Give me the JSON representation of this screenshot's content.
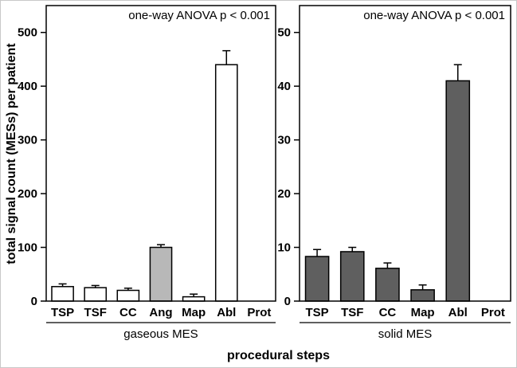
{
  "figure": {
    "ylabel": "total signal count (MESs) per patient",
    "xlabel": "procedural steps"
  },
  "chart_data": [
    {
      "type": "bar",
      "panel_label": "gaseous MES",
      "annotation": "one-way ANOVA p < 0.001",
      "categories": [
        "TSP",
        "TSF",
        "CC",
        "Ang",
        "Map",
        "Abl",
        "Prot"
      ],
      "values": [
        27,
        25,
        20,
        100,
        8,
        440,
        0
      ],
      "errors": [
        5,
        4,
        4,
        5,
        5,
        26,
        0
      ],
      "bar_fills": [
        "#ffffff",
        "#ffffff",
        "#ffffff",
        "#b8b8b8",
        "#ffffff",
        "#ffffff",
        "#ffffff"
      ],
      "bar_stroke": "#000000",
      "error_color": "#000000",
      "ylim": [
        0,
        550
      ],
      "yticks": [
        0,
        100,
        200,
        300,
        400,
        500
      ],
      "grid": false,
      "legend": "none"
    },
    {
      "type": "bar",
      "panel_label": "solid MES",
      "annotation": "one-way ANOVA p < 0.001",
      "categories": [
        "TSP",
        "TSF",
        "CC",
        "Map",
        "Abl",
        "Prot"
      ],
      "values": [
        8.3,
        9.2,
        6.1,
        2.1,
        41,
        0
      ],
      "errors": [
        1.3,
        0.8,
        1.0,
        0.9,
        3.0,
        0
      ],
      "bar_fills": [
        "#5f5f5f",
        "#5f5f5f",
        "#5f5f5f",
        "#5f5f5f",
        "#5f5f5f",
        "#5f5f5f"
      ],
      "bar_stroke": "#000000",
      "error_color": "#000000",
      "ylim": [
        0,
        55
      ],
      "yticks": [
        0,
        10,
        20,
        30,
        40,
        50
      ],
      "grid": false,
      "legend": "none"
    }
  ]
}
